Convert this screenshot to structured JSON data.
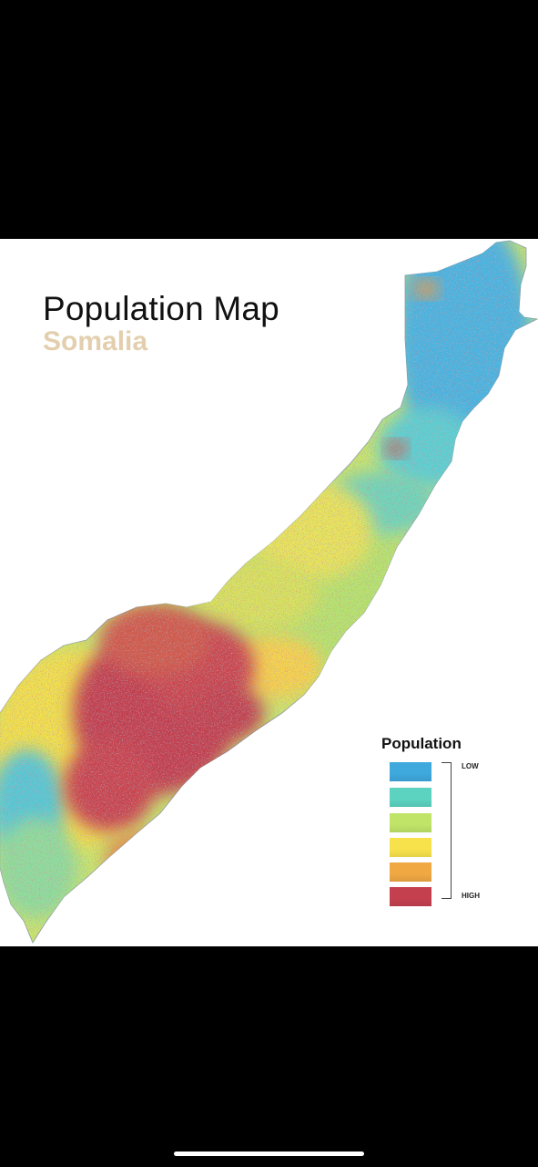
{
  "title": "Population Map",
  "subtitle": "Somalia",
  "legend": {
    "title": "Population",
    "low_label": "LOW",
    "high_label": "HIGH",
    "classes": [
      {
        "color": "#3fa8dd"
      },
      {
        "color": "#5cd3c0"
      },
      {
        "color": "#bfe468"
      },
      {
        "color": "#f8e24b"
      },
      {
        "color": "#f0a843"
      },
      {
        "color": "#c4404f"
      }
    ]
  },
  "colors": {
    "title_accent": "#e3cfae",
    "background": "#ffffff",
    "frame": "#000000"
  }
}
